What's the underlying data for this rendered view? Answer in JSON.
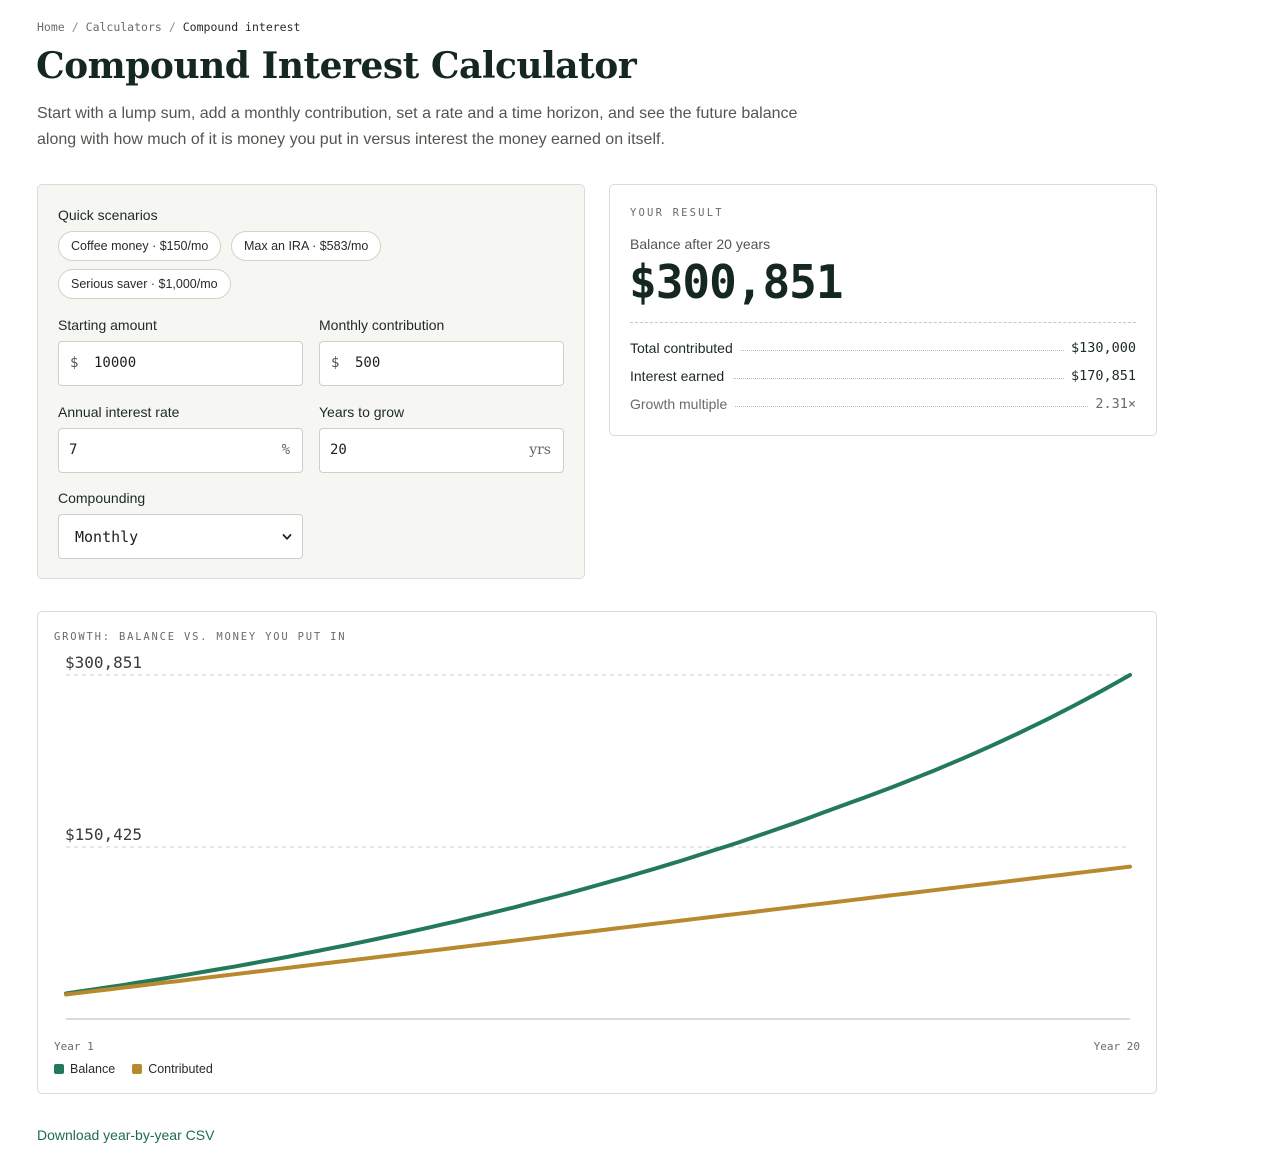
{
  "breadcrumb": {
    "home": "Home",
    "calculators": "Calculators",
    "current": "Compound interest",
    "separator": "/"
  },
  "page": {
    "title": "Compound Interest Calculator",
    "intro": "Start with a lump sum, add a monthly contribution, set a rate and a time horizon, and see the future balance along with how much of it is money you put in versus interest the money earned on itself."
  },
  "form": {
    "scenarios_label": "Quick scenarios",
    "scenarios": [
      "Coffee money · $150/mo",
      "Max an IRA · $583/mo",
      "Serious saver · $1,000/mo"
    ],
    "starting_amount": {
      "label": "Starting amount",
      "prefix": "$",
      "value": "10000"
    },
    "monthly_contribution": {
      "label": "Monthly contribution",
      "prefix": "$",
      "value": "500"
    },
    "interest_rate": {
      "label": "Annual interest rate",
      "value": "7",
      "suffix": "%"
    },
    "years": {
      "label": "Years to grow",
      "value": "20",
      "suffix": "yrs"
    },
    "compounding": {
      "label": "Compounding",
      "value": "Monthly"
    }
  },
  "result": {
    "eyebrow": "YOUR RESULT",
    "sub": "Balance after 20 years",
    "balance": "$300,851",
    "rows": [
      {
        "label": "Total contributed",
        "value": "$130,000"
      },
      {
        "label": "Interest earned",
        "value": "$170,851"
      },
      {
        "label": "Growth multiple",
        "value": "2.31×"
      }
    ]
  },
  "chart_data": {
    "type": "line",
    "title": "GROWTH: BALANCE VS. MONEY YOU PUT IN",
    "x": [
      1,
      2,
      3,
      4,
      5,
      6,
      7,
      8,
      9,
      10,
      11,
      12,
      13,
      14,
      15,
      20
    ],
    "x_tick_labels": [
      "Year 1",
      "Year 20"
    ],
    "y_tick_labels": [
      "$300,851",
      "$150,425"
    ],
    "ylim": [
      0,
      300851
    ],
    "grid": true,
    "legend": "bottom-left",
    "series": [
      {
        "name": "Balance",
        "color": "#237a5a",
        "values": [
          16922,
          24344,
          32302,
          40835,
          49985,
          59795,
          70314,
          81594,
          93688,
          106657,
          120563,
          135474,
          151463,
          168608,
          186992,
          300851
        ]
      },
      {
        "name": "Contributed",
        "color": "#b8892e",
        "values": [
          16000,
          22000,
          28000,
          34000,
          40000,
          46000,
          52000,
          58000,
          64000,
          70000,
          76000,
          82000,
          88000,
          94000,
          100000,
          130000
        ]
      }
    ]
  },
  "footer": {
    "csv_link": "Download year-by-year CSV"
  }
}
